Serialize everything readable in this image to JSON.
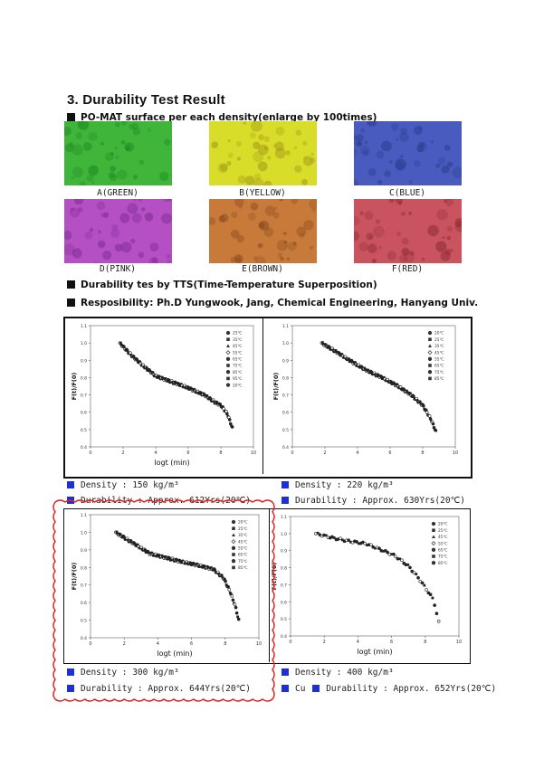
{
  "heading": "3. Durability Test Result",
  "bullets": {
    "surface": "PO-MAT surface per each density(enlarge by 100times)",
    "tts": "Durability tes by  TTS(Time-Temperature Superposition)",
    "responsibility": "Resposibility: Ph.D Yungwook, Jang, Chemical Engineering, Hanyang Univ."
  },
  "samples": [
    {
      "label": "A(GREEN)",
      "color": "#3fb53a",
      "dot": "#1f8a22"
    },
    {
      "label": "B(YELLOW)",
      "color": "#d7dd28",
      "dot": "#a69a1a"
    },
    {
      "label": "C(BLUE)",
      "color": "#4a5bbf",
      "dot": "#2c3a8c"
    },
    {
      "label": "D(PINK)",
      "color": "#b54fc4",
      "dot": "#7c2c8f"
    },
    {
      "label": "E(BROWN)",
      "color": "#c77a3a",
      "dot": "#8c4b1e"
    },
    {
      "label": "F(RED)",
      "color": "#c9545f",
      "dot": "#8e2c37"
    }
  ],
  "results": [
    {
      "density": "Density      : 150 kg/m³",
      "durability": "Durability  : Approx. 612Yrs(20℃)"
    },
    {
      "density": "Density      : 220 kg/m³",
      "durability": "Durability : Approx. 630Yrs(20℃)"
    },
    {
      "density": "Density      : 300 kg/m³",
      "durability": "Durability  : Approx. 644Yrs(20℃)"
    },
    {
      "density": "Density      : 400 kg/m³",
      "durability_prefix": "Cu",
      "durability": "Durability  : Approx. 652Yrs(20℃)"
    }
  ],
  "chart_data": [
    {
      "type": "scatter",
      "xlabel": "logt (min)",
      "ylabel": "F(t)/F(0)",
      "xlim": [
        0,
        10
      ],
      "ylim": [
        0.4,
        1.1
      ],
      "xticks": [
        "0",
        "2",
        "4",
        "6",
        "8",
        "10"
      ],
      "yticks": [
        "0.4",
        "0.5",
        "0.6",
        "0.7",
        "0.8",
        "0.9",
        "1.0",
        "1.1"
      ],
      "legend": [
        "25℃",
        "35℃",
        "45℃",
        "55℃",
        "65℃",
        "75℃",
        "85℃",
        "95℃",
        "20℃"
      ],
      "legend_position": "top-right",
      "series": [
        {
          "x": [
            1.8,
            2.5,
            3.2,
            4.0,
            5.0,
            6.0,
            7.0,
            7.6,
            8.0,
            8.4,
            8.7
          ],
          "y": [
            1.0,
            0.93,
            0.87,
            0.81,
            0.775,
            0.74,
            0.7,
            0.66,
            0.64,
            0.59,
            0.51
          ]
        }
      ]
    },
    {
      "type": "scatter",
      "xlabel": "",
      "ylabel": "F(t)/F(0)",
      "xlim": [
        0,
        10
      ],
      "ylim": [
        0.4,
        1.1
      ],
      "xticks": [
        "0",
        "2",
        "4",
        "6",
        "8",
        "10"
      ],
      "yticks": [
        "0.4",
        "0.5",
        "0.6",
        "0.7",
        "0.8",
        "0.9",
        "1.0",
        "1.1"
      ],
      "legend": [
        "20℃",
        "25℃",
        "35℃",
        "45℃",
        "55℃",
        "65℃",
        "75℃",
        "85℃"
      ],
      "legend_position": "top-right",
      "series": [
        {
          "x": [
            1.8,
            2.5,
            3.5,
            4.5,
            5.5,
            6.5,
            7.3,
            8.0,
            8.5,
            8.8
          ],
          "y": [
            1.0,
            0.96,
            0.9,
            0.845,
            0.8,
            0.75,
            0.7,
            0.64,
            0.56,
            0.49
          ]
        }
      ]
    },
    {
      "type": "scatter",
      "xlabel": "logt (min)",
      "ylabel": "F(t)/F(0)",
      "xlim": [
        0,
        10
      ],
      "ylim": [
        0.4,
        1.1
      ],
      "xticks": [
        "0",
        "2",
        "4",
        "6",
        "8",
        "10"
      ],
      "yticks": [
        "0.4",
        "0.5",
        "0.6",
        "0.7",
        "0.8",
        "0.9",
        "1.0",
        "1.1"
      ],
      "legend": [
        "20℃",
        "25℃",
        "35℃",
        "45℃",
        "55℃",
        "65℃",
        "75℃",
        "85℃"
      ],
      "legend_position": "top-right",
      "series": [
        {
          "x": [
            1.5,
            2.5,
            3.5,
            4.5,
            5.5,
            6.5,
            7.3,
            7.9,
            8.3,
            8.6,
            8.8
          ],
          "y": [
            1.0,
            0.94,
            0.88,
            0.855,
            0.83,
            0.81,
            0.79,
            0.74,
            0.66,
            0.58,
            0.5
          ]
        }
      ]
    },
    {
      "type": "scatter",
      "xlabel": "logt (min)",
      "ylabel": "F(t)/F(0)",
      "xlim": [
        0,
        10
      ],
      "ylim": [
        0.4,
        1.1
      ],
      "xticks": [
        "0",
        "2",
        "4",
        "6",
        "8",
        "10"
      ],
      "yticks": [
        "0.4",
        "0.5",
        "0.6",
        "0.7",
        "0.8",
        "0.9",
        "1.0",
        "1.1"
      ],
      "legend": [
        "20℃",
        "25℃",
        "45℃",
        "55℃",
        "65℃",
        "75℃",
        "85℃"
      ],
      "legend_position": "top-right",
      "series": [
        {
          "x": [
            1.5,
            2.5,
            3.5,
            4.5,
            5.5,
            6.2,
            7.0,
            7.6,
            8.1,
            8.5,
            8.8
          ],
          "y": [
            1.0,
            0.975,
            0.955,
            0.94,
            0.9,
            0.87,
            0.81,
            0.74,
            0.67,
            0.61,
            0.48
          ]
        }
      ]
    }
  ]
}
